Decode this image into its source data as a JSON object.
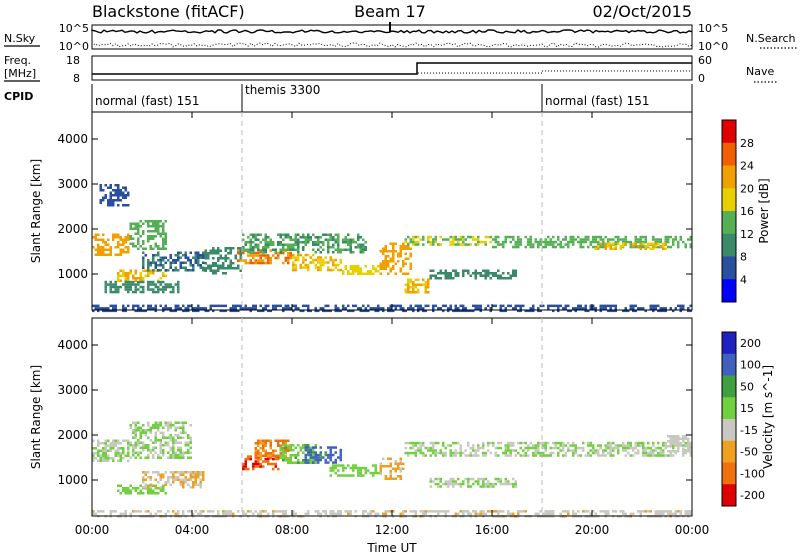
{
  "header": {
    "station": "Blackstone (fitACF)",
    "beam": "Beam 17",
    "date": "02/Oct/2015"
  },
  "left_labels": {
    "nsky": "N.Sky",
    "freq_line1": "Freq.",
    "freq_line2": "[MHz]",
    "cpid": "CPID"
  },
  "right_labels": {
    "nsearch": "N.Search",
    "nave": "Nave"
  },
  "noise_axis": {
    "left_top": "10^5",
    "left_bottom": "10^0",
    "right_top": "10^5",
    "right_bottom": "10^0"
  },
  "freq_axis": {
    "left_top": "18",
    "left_bottom": "8",
    "right_top": "60",
    "right_bottom": "0"
  },
  "cpid_segments": [
    {
      "label": "normal (fast) 151",
      "start_h": 0,
      "end_h": 6
    },
    {
      "label": "themis 3300",
      "start_h": 6,
      "end_h": 18
    },
    {
      "label": "normal (fast) 151",
      "start_h": 18,
      "end_h": 24
    }
  ],
  "colors": {
    "power": [
      "#0000ff",
      "#2a4fa0",
      "#3a8a6a",
      "#55b055",
      "#e8d000",
      "#f0a000",
      "#f06000",
      "#e00000"
    ],
    "velocity": [
      "#2020c0",
      "#4060c0",
      "#40a040",
      "#70d040",
      "#c8c8c0",
      "#f0a020",
      "#f07010",
      "#e00000"
    ]
  },
  "chart_data": [
    {
      "type": "heatmap",
      "panel": "power",
      "xlabel": "",
      "ylabel": "Slant Range [km]",
      "xlim": [
        "00:00",
        "24:00"
      ],
      "ylim": [
        200,
        4600
      ],
      "yticks": [
        "1000",
        "2000",
        "3000",
        "4000"
      ],
      "colorbar": {
        "label": "Power [dB]",
        "ticks": [
          "4",
          "8",
          "12",
          "16",
          "20",
          "24",
          "28"
        ],
        "range": [
          0,
          32
        ]
      },
      "bands": [
        {
          "t0": 0.0,
          "t1": 1.5,
          "r0": 1450,
          "r1": 1900,
          "value": 22
        },
        {
          "t0": 1.5,
          "t1": 3.0,
          "r0": 1550,
          "r1": 2200,
          "value": 14
        },
        {
          "t0": 1.0,
          "t1": 3.0,
          "r0": 850,
          "r1": 1100,
          "value": 20
        },
        {
          "t0": 0.5,
          "t1": 3.5,
          "r0": 600,
          "r1": 850,
          "value": 10
        },
        {
          "t0": 2.0,
          "t1": 4.5,
          "r0": 1100,
          "r1": 1500,
          "value": 8
        },
        {
          "t0": 4.5,
          "t1": 6.0,
          "r0": 1000,
          "r1": 1600,
          "value": 10
        },
        {
          "t0": 5.8,
          "t1": 8.0,
          "r0": 1250,
          "r1": 1550,
          "value": 24
        },
        {
          "t0": 8.0,
          "t1": 10.0,
          "r0": 1100,
          "r1": 1450,
          "value": 20
        },
        {
          "t0": 10.0,
          "t1": 11.5,
          "r0": 1000,
          "r1": 1200,
          "value": 18
        },
        {
          "t0": 6.0,
          "t1": 11.0,
          "r0": 1500,
          "r1": 1900,
          "value": 12
        },
        {
          "t0": 11.5,
          "t1": 12.8,
          "r0": 1000,
          "r1": 1700,
          "value": 22
        },
        {
          "t0": 12.5,
          "t1": 13.5,
          "r0": 600,
          "r1": 900,
          "value": 20
        },
        {
          "t0": 12.5,
          "t1": 16.0,
          "r0": 1650,
          "r1": 1850,
          "value": 16
        },
        {
          "t0": 13.5,
          "t1": 17.0,
          "r0": 900,
          "r1": 1100,
          "value": 10
        },
        {
          "t0": 16.0,
          "t1": 24.0,
          "r0": 1600,
          "r1": 1850,
          "value": 14
        },
        {
          "t0": 20.0,
          "t1": 23.0,
          "r0": 1550,
          "r1": 1700,
          "value": 20
        },
        {
          "t0": 0.0,
          "t1": 24.0,
          "r0": 200,
          "r1": 320,
          "value": 6
        },
        {
          "t0": 0.3,
          "t1": 1.5,
          "r0": 2500,
          "r1": 3000,
          "value": 6
        }
      ]
    },
    {
      "type": "heatmap",
      "panel": "velocity",
      "xlabel": "Time UT",
      "ylabel": "Slant Range [km]",
      "xlim": [
        "00:00",
        "24:00"
      ],
      "ylim": [
        200,
        4600
      ],
      "yticks": [
        "1000",
        "2000",
        "3000",
        "4000"
      ],
      "xticks": [
        "00:00",
        "04:00",
        "08:00",
        "12:00",
        "16:00",
        "20:00",
        "00:00"
      ],
      "colorbar": {
        "label": "Velocity [m s^-1]",
        "ticks": [
          "200",
          "100",
          "50",
          "15",
          "-15",
          "-50",
          "-100",
          "-200"
        ],
        "range": [
          -250,
          250
        ]
      },
      "bands": [
        {
          "t0": 0.0,
          "t1": 1.5,
          "r0": 1400,
          "r1": 1900,
          "value": -5
        },
        {
          "t0": 1.5,
          "t1": 4.0,
          "r0": 1500,
          "r1": 2300,
          "value": 5
        },
        {
          "t0": 1.0,
          "t1": 3.0,
          "r0": 700,
          "r1": 900,
          "value": 30
        },
        {
          "t0": 2.0,
          "t1": 4.5,
          "r0": 850,
          "r1": 1200,
          "value": -60
        },
        {
          "t0": 6.0,
          "t1": 7.5,
          "r0": 1250,
          "r1": 1550,
          "value": -180
        },
        {
          "t0": 6.5,
          "t1": 8.0,
          "r0": 1500,
          "r1": 1900,
          "value": -120
        },
        {
          "t0": 7.5,
          "t1": 9.0,
          "r0": 1400,
          "r1": 1800,
          "value": 40
        },
        {
          "t0": 8.5,
          "t1": 10.0,
          "r0": 1400,
          "r1": 1750,
          "value": 150
        },
        {
          "t0": 9.5,
          "t1": 11.5,
          "r0": 1100,
          "r1": 1350,
          "value": 30
        },
        {
          "t0": 11.5,
          "t1": 12.5,
          "r0": 1000,
          "r1": 1500,
          "value": -80
        },
        {
          "t0": 12.5,
          "t1": 24.0,
          "r0": 1550,
          "r1": 1850,
          "value": 0
        },
        {
          "t0": 13.5,
          "t1": 17.0,
          "r0": 850,
          "r1": 1050,
          "value": 0
        },
        {
          "t0": 0.0,
          "t1": 24.0,
          "r0": 200,
          "r1": 330,
          "value": -40
        },
        {
          "t0": 23.0,
          "t1": 24.0,
          "r0": 1650,
          "r1": 2000,
          "value": -30
        }
      ]
    }
  ]
}
